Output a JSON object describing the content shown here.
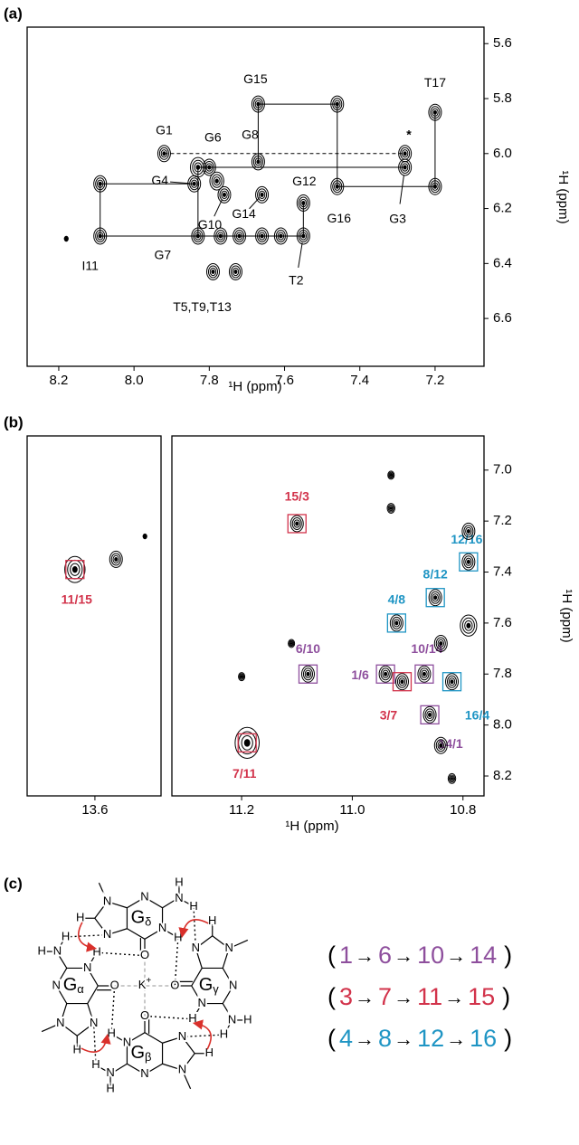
{
  "panel_labels": [
    "(a)",
    "(b)",
    "(c)"
  ],
  "chart_data": [
    {
      "type": "contour",
      "xlabel": "¹H (ppm)",
      "ylabel": "¹H (ppm)",
      "xlim": [
        7.07,
        8.284
      ],
      "x_inverted": true,
      "ylim": [
        5.54,
        6.774
      ],
      "y_inverted": true,
      "xticks": [
        8.2,
        {
          "value": 8,
          "label": "8.0"
        },
        7.8,
        7.6,
        7.4,
        7.2
      ],
      "yticks": [
        5.6,
        5.8,
        {
          "value": 6,
          "label": "6.0"
        },
        6.2,
        6.4,
        6.6
      ],
      "color": "#000000",
      "peaks": {
        "x": [
          7.92,
          7.83,
          7.8,
          7.78,
          7.84,
          7.76,
          7.67,
          7.66,
          7.67,
          7.46,
          7.46,
          7.55,
          7.28,
          7.2,
          7.2,
          8.09,
          8.09,
          7.83,
          7.77,
          7.72,
          7.66,
          7.61,
          7.55,
          7.79,
          7.73,
          8.18,
          7.28
        ],
        "y": [
          6.0,
          6.05,
          6.05,
          6.1,
          6.11,
          6.15,
          6.03,
          6.15,
          5.82,
          5.82,
          6.12,
          6.18,
          6.05,
          5.85,
          6.12,
          6.11,
          6.3,
          6.3,
          6.3,
          6.3,
          6.3,
          6.3,
          6.3,
          6.43,
          6.43,
          6.31,
          6.0
        ],
        "labels": [
          "G1",
          null,
          "G6",
          null,
          "G4",
          "G10",
          "G8",
          "G14",
          "G15",
          null,
          "G16",
          "G12",
          "G3",
          "T17",
          null,
          null,
          "I11",
          "G7",
          null,
          null,
          null,
          null,
          "T2",
          "T5,T9,T13",
          null,
          null,
          null
        ]
      },
      "connections": [
        [
          15,
          16
        ],
        [
          15,
          4
        ],
        [
          16,
          22
        ],
        [
          17,
          1
        ],
        [
          1,
          12
        ],
        [
          8,
          9
        ],
        [
          8,
          6
        ],
        [
          9,
          10
        ],
        [
          10,
          14
        ],
        [
          13,
          14
        ],
        [
          11,
          22
        ]
      ],
      "dashed_connections": [
        [
          0,
          26
        ]
      ],
      "note": "*"
    },
    {
      "type": "contour",
      "xlim": [
        13.481,
        13.722
      ],
      "x_inverted": true,
      "ylim": [
        6.866,
        8.278
      ],
      "y_inverted": true,
      "xticks": [
        13.6
      ],
      "color": "#000000",
      "peaks": {
        "x": [
          13.636,
          13.562,
          13.51
        ],
        "y": [
          7.39,
          7.35,
          7.26
        ],
        "labels": [
          "11/15",
          null,
          null
        ],
        "colors": [
          "#d2334b",
          null,
          null
        ]
      }
    },
    {
      "type": "contour",
      "xlabel": "¹H (ppm)",
      "ylabel": "¹H (ppm)",
      "xlim": [
        10.762,
        11.326
      ],
      "x_inverted": true,
      "ylim": [
        6.866,
        8.278
      ],
      "y_inverted": true,
      "xticks": [
        11.2,
        {
          "value": 11,
          "label": "11.0"
        },
        10.8
      ],
      "yticks": [
        {
          "value": 7,
          "label": "7.0"
        },
        7.2,
        7.4,
        7.6,
        7.8,
        {
          "value": 8,
          "label": "8.0"
        },
        8.2
      ],
      "color": "#000000",
      "peaks": {
        "x": [
          11.1,
          11.08,
          11.19,
          11.2,
          11.11,
          10.94,
          10.91,
          10.87,
          10.92,
          10.85,
          10.79,
          10.82,
          10.86,
          10.79,
          10.79,
          10.84,
          10.93,
          10.93,
          10.84,
          10.82
        ],
        "y": [
          7.21,
          7.8,
          8.07,
          7.81,
          7.68,
          7.8,
          7.83,
          7.8,
          7.6,
          7.5,
          7.36,
          7.83,
          7.96,
          7.24,
          7.61,
          8.08,
          7.02,
          7.15,
          7.68,
          8.21
        ],
        "labels": [
          "15/3",
          "6/10",
          "7/11",
          null,
          null,
          "1/6",
          "3/7",
          "10/14",
          "4/8",
          "8/12",
          "12/16",
          "16/4",
          "14/1",
          null,
          null,
          null,
          null,
          null,
          null,
          null
        ],
        "colors": [
          "#d2334b",
          "#8e4f9d",
          "#d2334b",
          null,
          null,
          "#8e4f9d",
          "#d2334b",
          "#8e4f9d",
          "#1f95c4",
          "#1f95c4",
          "#1f95c4",
          "#1f95c4",
          "#8e4f9d",
          null,
          null,
          null,
          null,
          null,
          null,
          null
        ]
      }
    }
  ],
  "structure": {
    "center": {
      "text": "K",
      "sup": "+"
    },
    "guanines": [
      {
        "name": "G",
        "sub": "α",
        "atoms": [
          "O",
          "N",
          "H",
          "N",
          "H",
          "H",
          "N",
          "N",
          "H",
          "N"
        ]
      },
      {
        "name": "G",
        "sub": "β",
        "atoms": [
          "O",
          "N",
          "H",
          "N",
          "H",
          "H",
          "N",
          "N",
          "H",
          "N"
        ]
      },
      {
        "name": "G",
        "sub": "γ",
        "atoms": [
          "O",
          "N",
          "H",
          "N",
          "H",
          "H",
          "N",
          "N",
          "H",
          "N"
        ]
      },
      {
        "name": "G",
        "sub": "δ",
        "atoms": [
          "O",
          "N",
          "H",
          "N",
          "H",
          "H",
          "N",
          "N",
          "H",
          "N"
        ]
      }
    ]
  },
  "sequence_panel": {
    "open": "(",
    "arrow": "→",
    "close": ")",
    "rows": [
      {
        "items": [
          "1",
          "6",
          "10",
          "14"
        ],
        "color": "#8e4f9d"
      },
      {
        "items": [
          "3",
          "7",
          "11",
          "15"
        ],
        "color": "#d2334b"
      },
      {
        "items": [
          "4",
          "8",
          "12",
          "16"
        ],
        "color": "#1f95c4"
      }
    ]
  }
}
